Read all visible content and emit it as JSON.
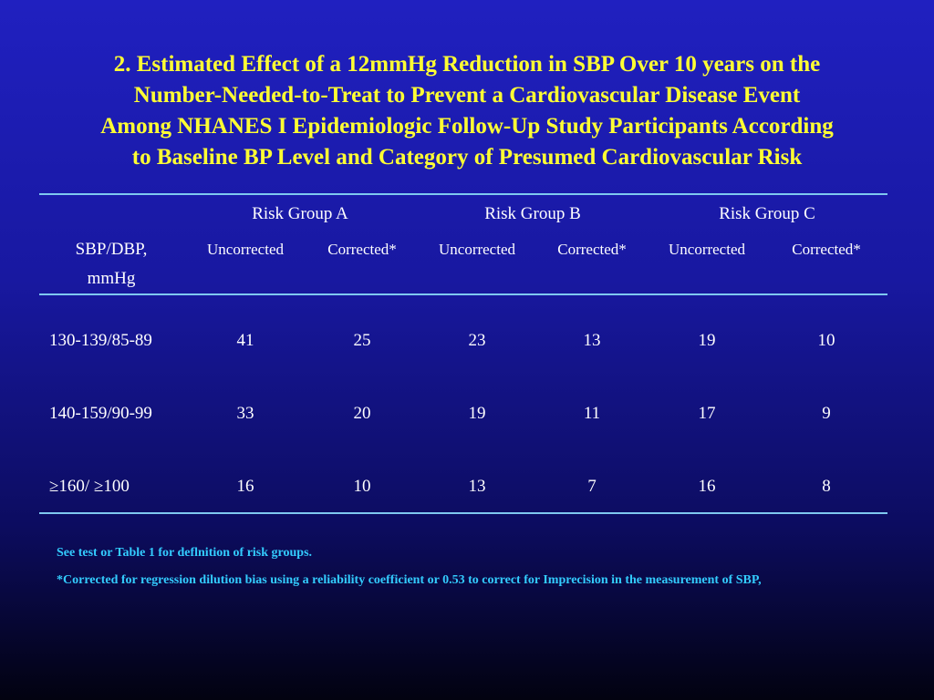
{
  "title_lines": [
    "2.  Estimated Effect of a 12mmHg Reduction in SBP Over 10 years on the",
    "Number-Needed-to-Treat to Prevent a Cardiovascular Disease Event",
    "Among NHANES I Epidemiologic Follow-Up Study Participants According",
    "to Baseline BP Level and Category of Presumed Cardiovascular Risk"
  ],
  "table": {
    "row_header": [
      "SBP/DBP,",
      "mmHg"
    ],
    "groups": [
      "Risk Group A",
      "Risk Group B",
      "Risk Group C"
    ],
    "subheaders": [
      "Uncorrected",
      "Corrected*",
      "Uncorrected",
      "Corrected*",
      "Uncorrected",
      "Corrected*"
    ],
    "rows": [
      {
        "label": "130-139/85-89",
        "values": [
          "41",
          "25",
          "23",
          "13",
          "19",
          "10"
        ]
      },
      {
        "label": "140-159/90-99",
        "values": [
          "33",
          "20",
          "19",
          "11",
          "17",
          "9"
        ]
      },
      {
        "label": "≥160/ ≥100",
        "values": [
          "16",
          "10",
          "13",
          "7",
          "16",
          "8"
        ]
      }
    ]
  },
  "footnotes": [
    "See test or Table 1 for deflnition of risk groups.",
    "*Corrected for regression dilution bias using a reliability coefficient or 0.53 to correct for Imprecision in the measurement of SBP,"
  ],
  "colors": {
    "title": "#ffff33",
    "text": "#ffffff",
    "rule": "#7fc8f0",
    "footnote": "#33ccff"
  }
}
